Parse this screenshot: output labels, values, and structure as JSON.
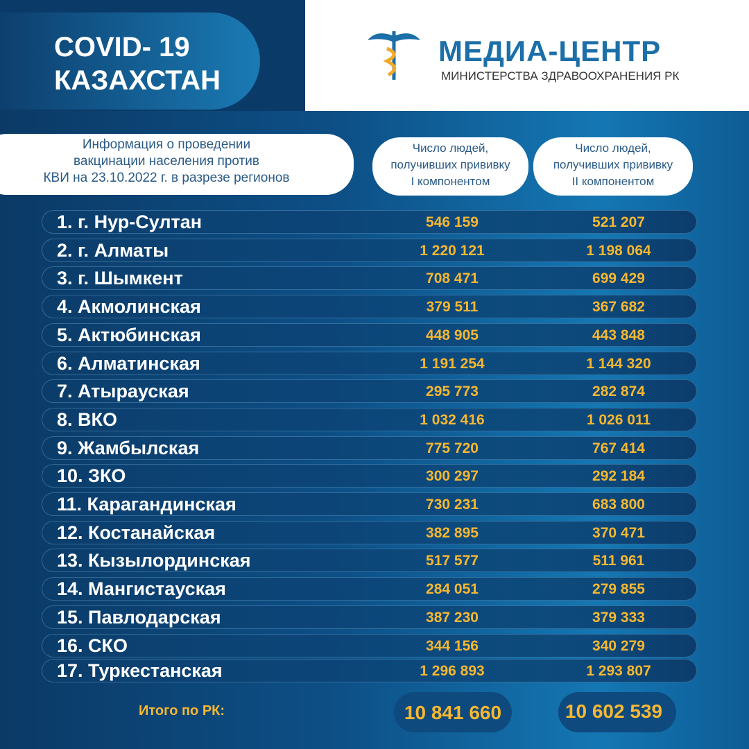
{
  "header": {
    "title": "COVID- 19",
    "subtitle": "КАЗАХСТАН"
  },
  "logo": {
    "title": "МЕДИА-ЦЕНТР",
    "subtitle": "МИНИСТЕРСТВА ЗДРАВООХРАНЕНИЯ РК"
  },
  "table": {
    "caption": [
      "Информация о проведении",
      "вакцинации населения против",
      "КВИ на 23.10.2022 г. в разрезе регионов"
    ],
    "columns": [
      [
        "Число людей,",
        "получивших прививку",
        "I компонентом"
      ],
      [
        "Число людей,",
        "получивших прививку",
        "II компонентом"
      ]
    ],
    "rows": [
      [
        "1. г. Нур-Султан",
        "546 159",
        "521 207"
      ],
      [
        "2. г. Алматы",
        "1 220 121",
        "1 198 064"
      ],
      [
        "3. г. Шымкент",
        "708 471",
        "699 429"
      ],
      [
        "4. Акмолинская",
        "379 511",
        "367 682"
      ],
      [
        "5. Актюбинская",
        "448 905",
        "443 848"
      ],
      [
        "6. Алматинская",
        "1 191 254",
        "1 144 320"
      ],
      [
        "7. Атырауская",
        "295 773",
        "282 874"
      ],
      [
        "8. ВКО",
        "1 032 416",
        "1 026 011"
      ],
      [
        "9. Жамбылская",
        "775 720",
        "767 414"
      ],
      [
        "10. ЗКО",
        "300 297",
        "292 184"
      ],
      [
        "11. Карагандинская",
        "730 231",
        "683 800"
      ],
      [
        "12. Костанайская",
        "382 895",
        "370 471"
      ],
      [
        "13. Кызылординская",
        "517 577",
        "511 961"
      ],
      [
        "14. Мангистауская",
        "284 051",
        "279 855"
      ],
      [
        "15. Павлодарская",
        "387 230",
        "379 333"
      ],
      [
        "16. СКО",
        "344 156",
        "340 279"
      ],
      [
        "17. Туркестанская",
        "1 296 893",
        "1 293 807"
      ]
    ],
    "total": {
      "label": "Итого по РК:",
      "values": [
        "10 841 660",
        "10 602 539"
      ]
    }
  }
}
